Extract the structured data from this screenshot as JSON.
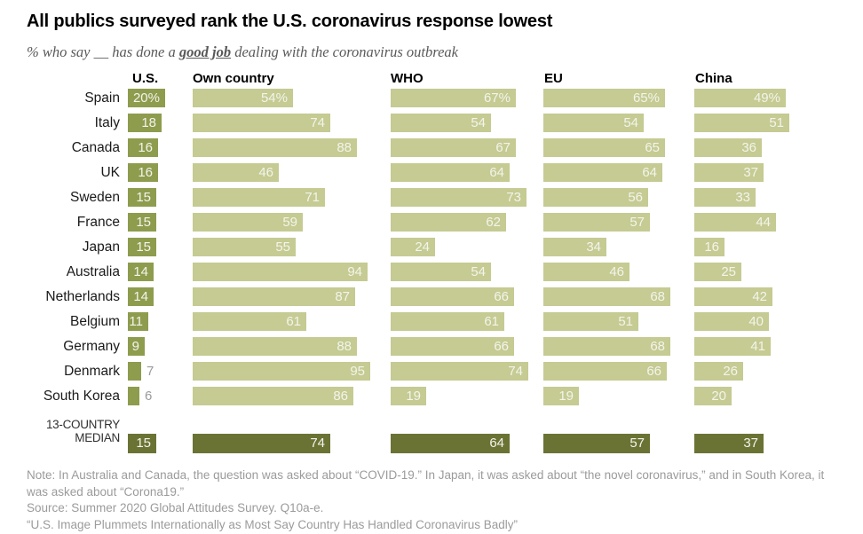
{
  "header": {
    "title": "All publics surveyed rank the U.S. coronavirus response lowest",
    "subtitle_pre": "% who say __ has done a ",
    "subtitle_highlight": "good job",
    "subtitle_post": " dealing with the coronavirus outbreak"
  },
  "chart_data": {
    "type": "bar",
    "title": "All publics surveyed rank the U.S. coronavirus response lowest",
    "unit": "% saying good job",
    "xlim": [
      0,
      100
    ],
    "columns": [
      "U.S.",
      "Own country",
      "WHO",
      "EU",
      "China"
    ],
    "rows": [
      {
        "label": "Spain",
        "values": [
          20,
          54,
          67,
          65,
          49
        ],
        "labels": [
          "20%",
          "54%",
          "67%",
          "65%",
          "49%"
        ]
      },
      {
        "label": "Italy",
        "values": [
          18,
          74,
          54,
          54,
          51
        ],
        "labels": [
          "18",
          "74",
          "54",
          "54",
          "51"
        ]
      },
      {
        "label": "Canada",
        "values": [
          16,
          88,
          67,
          65,
          36
        ],
        "labels": [
          "16",
          "88",
          "67",
          "65",
          "36"
        ]
      },
      {
        "label": "UK",
        "values": [
          16,
          46,
          64,
          64,
          37
        ],
        "labels": [
          "16",
          "46",
          "64",
          "64",
          "37"
        ]
      },
      {
        "label": "Sweden",
        "values": [
          15,
          71,
          73,
          56,
          33
        ],
        "labels": [
          "15",
          "71",
          "73",
          "56",
          "33"
        ]
      },
      {
        "label": "France",
        "values": [
          15,
          59,
          62,
          57,
          44
        ],
        "labels": [
          "15",
          "59",
          "62",
          "57",
          "44"
        ]
      },
      {
        "label": "Japan",
        "values": [
          15,
          55,
          24,
          34,
          16
        ],
        "labels": [
          "15",
          "55",
          "24",
          "34",
          "16"
        ]
      },
      {
        "label": "Australia",
        "values": [
          14,
          94,
          54,
          46,
          25
        ],
        "labels": [
          "14",
          "94",
          "54",
          "46",
          "25"
        ]
      },
      {
        "label": "Netherlands",
        "values": [
          14,
          87,
          66,
          68,
          42
        ],
        "labels": [
          "14",
          "87",
          "66",
          "68",
          "42"
        ]
      },
      {
        "label": "Belgium",
        "values": [
          11,
          61,
          61,
          51,
          40
        ],
        "labels": [
          "11",
          "61",
          "61",
          "51",
          "40"
        ]
      },
      {
        "label": "Germany",
        "values": [
          9,
          88,
          66,
          68,
          41
        ],
        "labels": [
          "9",
          "88",
          "66",
          "68",
          "41"
        ]
      },
      {
        "label": "Denmark",
        "values": [
          7,
          95,
          74,
          66,
          26
        ],
        "labels": [
          "7",
          "95",
          "74",
          "66",
          "26"
        ]
      },
      {
        "label": "South Korea",
        "values": [
          6,
          86,
          19,
          19,
          20
        ],
        "labels": [
          "6",
          "86",
          "19",
          "19",
          "20"
        ]
      }
    ],
    "median": {
      "label_lines": [
        "13-COUNTRY",
        "MEDIAN"
      ],
      "values": [
        15,
        74,
        64,
        57,
        37
      ],
      "labels": [
        "15",
        "74",
        "64",
        "57",
        "37"
      ]
    },
    "colors": {
      "us_bar": "#8e9c4e",
      "bar": "#c5cb92",
      "median_bar": "#6b7334",
      "bar_text": "#f4f4ec",
      "outside_text": "#9a9a9a"
    }
  },
  "footer": {
    "note": "Note: In Australia and Canada, the question was asked about “COVID-19.” In Japan, it was asked about “the novel coronavirus,” and in South Korea, it was asked about “Corona19.”",
    "source": "Source: Summer 2020 Global Attitudes Survey. Q10a-e.",
    "report": "“U.S. Image Plummets Internationally as Most Say Country Has Handled Coronavirus Badly”"
  }
}
